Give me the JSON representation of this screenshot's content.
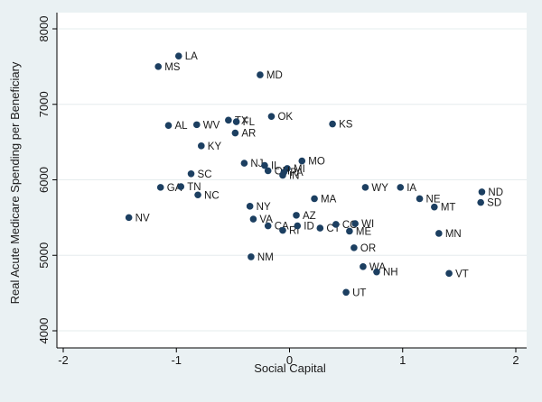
{
  "chart_data": {
    "type": "scatter",
    "title": "",
    "xlabel": "Social Capital",
    "ylabel": "Real Acute Medicare Spending per Beneficiary",
    "xlim": [
      -2.0,
      2.0
    ],
    "ylim": [
      4000,
      8000
    ],
    "xticks": [
      -2,
      -1,
      0,
      1,
      2
    ],
    "yticks": [
      4000,
      5000,
      6000,
      7000,
      8000
    ],
    "xtick_labels": [
      "-2",
      "-1",
      "0",
      "1",
      "2"
    ],
    "ytick_labels": [
      "4000",
      "5000",
      "6000",
      "7000",
      "8000"
    ],
    "grid": "horizontal",
    "marker_color": "#1c3f61",
    "points": [
      {
        "label": "LA",
        "x": -0.98,
        "y": 7640
      },
      {
        "label": "MS",
        "x": -1.16,
        "y": 7500
      },
      {
        "label": "MD",
        "x": -0.26,
        "y": 7390
      },
      {
        "label": "OK",
        "x": -0.16,
        "y": 6840
      },
      {
        "label": "KS",
        "x": 0.38,
        "y": 6740
      },
      {
        "label": "TX",
        "x": -0.54,
        "y": 6790
      },
      {
        "label": "FL",
        "x": -0.47,
        "y": 6770
      },
      {
        "label": "WV",
        "x": -0.82,
        "y": 6730
      },
      {
        "label": "AL",
        "x": -1.07,
        "y": 6720
      },
      {
        "label": "AR",
        "x": -0.48,
        "y": 6620
      },
      {
        "label": "KY",
        "x": -0.78,
        "y": 6450
      },
      {
        "label": "MO",
        "x": 0.11,
        "y": 6250
      },
      {
        "label": "NJ",
        "x": -0.4,
        "y": 6220
      },
      {
        "label": "IL",
        "x": -0.22,
        "y": 6190
      },
      {
        "label": "MI",
        "x": -0.02,
        "y": 6150
      },
      {
        "label": "OH",
        "x": -0.19,
        "y": 6120
      },
      {
        "label": "PA",
        "x": -0.05,
        "y": 6100
      },
      {
        "label": "IN",
        "x": -0.06,
        "y": 6060
      },
      {
        "label": "SC",
        "x": -0.87,
        "y": 6080
      },
      {
        "label": "GA",
        "x": -1.14,
        "y": 5900
      },
      {
        "label": "TN",
        "x": -0.96,
        "y": 5910
      },
      {
        "label": "NC",
        "x": -0.81,
        "y": 5800
      },
      {
        "label": "WY",
        "x": 0.67,
        "y": 5900
      },
      {
        "label": "IA",
        "x": 0.98,
        "y": 5900
      },
      {
        "label": "NE",
        "x": 1.15,
        "y": 5750
      },
      {
        "label": "MT",
        "x": 1.28,
        "y": 5640
      },
      {
        "label": "ND",
        "x": 1.7,
        "y": 5840
      },
      {
        "label": "SD",
        "x": 1.69,
        "y": 5700
      },
      {
        "label": "MA",
        "x": 0.22,
        "y": 5750
      },
      {
        "label": "NY",
        "x": -0.35,
        "y": 5650
      },
      {
        "label": "AZ",
        "x": 0.06,
        "y": 5530
      },
      {
        "label": "VA",
        "x": -0.32,
        "y": 5480
      },
      {
        "label": "CA",
        "x": -0.19,
        "y": 5390
      },
      {
        "label": "RI",
        "x": -0.06,
        "y": 5330
      },
      {
        "label": "ID",
        "x": 0.07,
        "y": 5390
      },
      {
        "label": "CT",
        "x": 0.27,
        "y": 5360
      },
      {
        "label": "CO",
        "x": 0.41,
        "y": 5410
      },
      {
        "label": "WI",
        "x": 0.58,
        "y": 5420
      },
      {
        "label": "ME",
        "x": 0.53,
        "y": 5320
      },
      {
        "label": "NV",
        "x": -1.42,
        "y": 5500
      },
      {
        "label": "MN",
        "x": 1.32,
        "y": 5290
      },
      {
        "label": "OR",
        "x": 0.57,
        "y": 5100
      },
      {
        "label": "NM",
        "x": -0.34,
        "y": 4980
      },
      {
        "label": "WA",
        "x": 0.65,
        "y": 4850
      },
      {
        "label": "NH",
        "x": 0.77,
        "y": 4780
      },
      {
        "label": "VT",
        "x": 1.41,
        "y": 4760
      },
      {
        "label": "UT",
        "x": 0.5,
        "y": 4510
      }
    ]
  }
}
